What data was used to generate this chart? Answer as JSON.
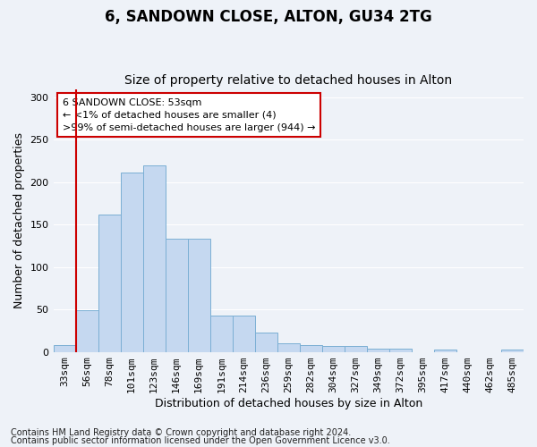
{
  "title": "6, SANDOWN CLOSE, ALTON, GU34 2TG",
  "subtitle": "Size of property relative to detached houses in Alton",
  "xlabel": "Distribution of detached houses by size in Alton",
  "ylabel": "Number of detached properties",
  "categories": [
    "33sqm",
    "56sqm",
    "78sqm",
    "101sqm",
    "123sqm",
    "146sqm",
    "169sqm",
    "191sqm",
    "214sqm",
    "236sqm",
    "259sqm",
    "282sqm",
    "304sqm",
    "327sqm",
    "349sqm",
    "372sqm",
    "395sqm",
    "417sqm",
    "440sqm",
    "462sqm",
    "485sqm"
  ],
  "values": [
    8,
    49,
    162,
    212,
    220,
    133,
    133,
    43,
    43,
    23,
    10,
    8,
    7,
    7,
    4,
    4,
    0,
    3,
    0,
    0,
    3
  ],
  "bar_color": "#c5d8f0",
  "bar_edge_color": "#7bafd4",
  "vline_x": 0.5,
  "vline_color": "#cc0000",
  "ylim": [
    0,
    310
  ],
  "yticks": [
    0,
    50,
    100,
    150,
    200,
    250,
    300
  ],
  "annotation_title": "6 SANDOWN CLOSE: 53sqm",
  "annotation_line1": "← <1% of detached houses are smaller (4)",
  "annotation_line2": ">99% of semi-detached houses are larger (944) →",
  "annotation_box_facecolor": "#ffffff",
  "annotation_box_edgecolor": "#cc0000",
  "footnote1": "Contains HM Land Registry data © Crown copyright and database right 2024.",
  "footnote2": "Contains public sector information licensed under the Open Government Licence v3.0.",
  "background_color": "#eef2f8",
  "grid_color": "#ffffff",
  "title_fontsize": 12,
  "subtitle_fontsize": 10,
  "axis_label_fontsize": 9,
  "tick_fontsize": 8,
  "annotation_fontsize": 8,
  "footnote_fontsize": 7
}
